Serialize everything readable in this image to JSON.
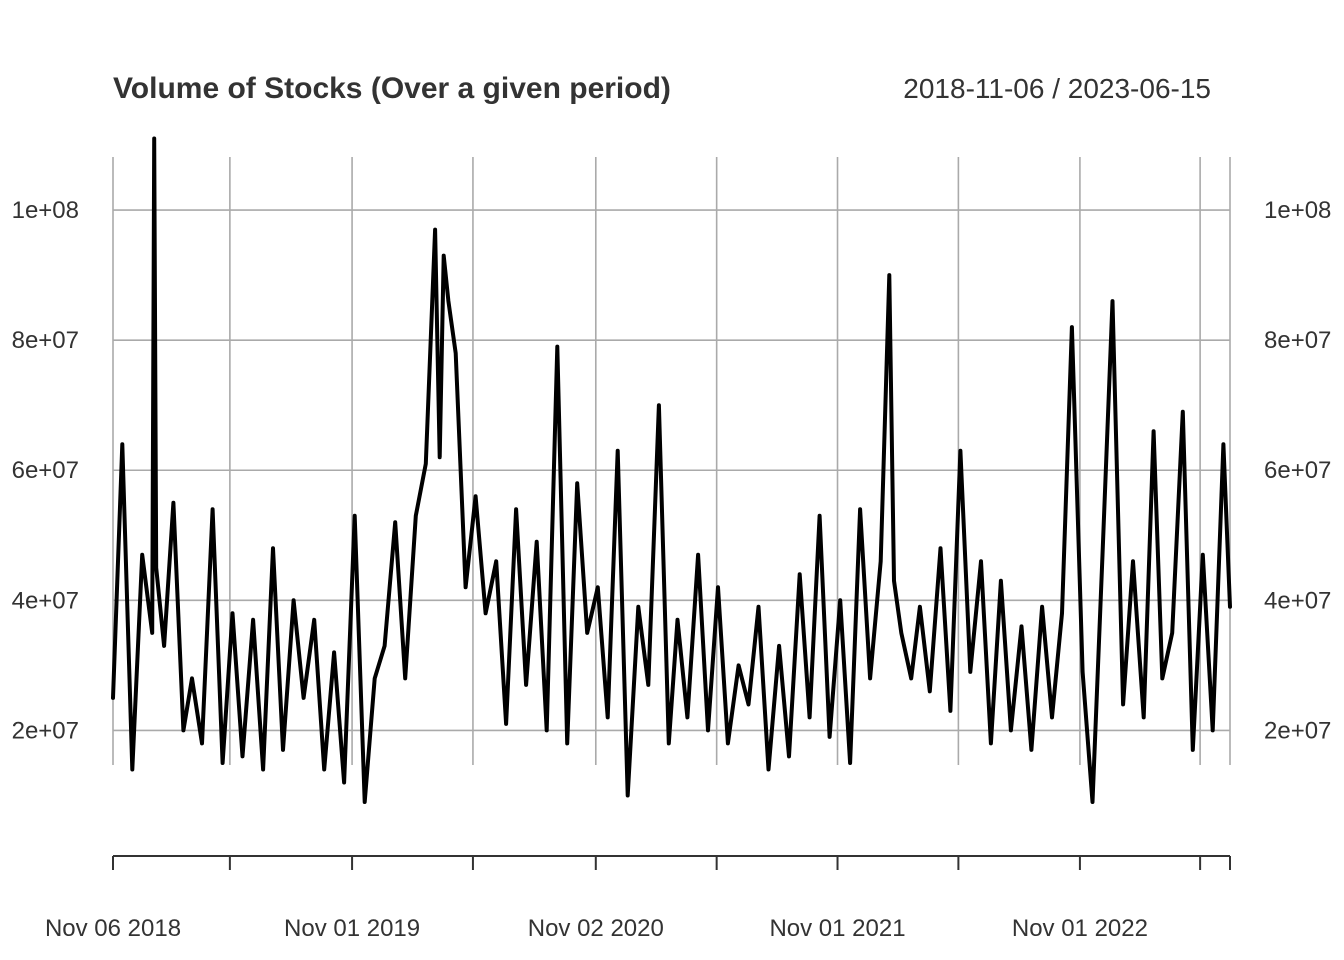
{
  "chart_data": {
    "type": "line",
    "title": "Volume of Stocks (Over a given period)",
    "date_range": "2018-11-06 / 2023-06-15",
    "x_range": [
      "2018-11-06",
      "2023-06-15"
    ],
    "ylim": [
      5000000,
      110000000
    ],
    "y_ticks": [
      20000000,
      40000000,
      60000000,
      80000000,
      100000000
    ],
    "y_tick_labels": [
      "2e+07",
      "4e+07",
      "6e+07",
      "8e+07",
      "1e+08"
    ],
    "x_ticks": [
      "2018-11-06",
      "2019-05-01",
      "2019-11-01",
      "2020-05-01",
      "2020-11-02",
      "2021-05-03",
      "2021-11-01",
      "2022-05-02",
      "2022-11-01",
      "2023-05-01",
      "2023-06-15"
    ],
    "x_tick_labels": [
      {
        "date": "2018-11-06",
        "label": "Nov 06 2018"
      },
      {
        "date": "2019-11-01",
        "label": "Nov 01 2019"
      },
      {
        "date": "2020-11-02",
        "label": "Nov 02 2020"
      },
      {
        "date": "2021-11-01",
        "label": "Nov 01 2021"
      },
      {
        "date": "2022-11-01",
        "label": "Nov 01 2022"
      }
    ],
    "grid": true,
    "series": [
      {
        "x": [
          "2018-11-06",
          "2018-11-20",
          "2018-12-05",
          "2018-12-20",
          "2019-01-04",
          "2019-01-07",
          "2019-01-10",
          "2019-01-22",
          "2019-02-05",
          "2019-02-20",
          "2019-03-05",
          "2019-03-20",
          "2019-04-05",
          "2019-04-20",
          "2019-05-05",
          "2019-05-20",
          "2019-06-05",
          "2019-06-20",
          "2019-07-05",
          "2019-07-20",
          "2019-08-05",
          "2019-08-20",
          "2019-09-05",
          "2019-09-20",
          "2019-10-05",
          "2019-10-20",
          "2019-11-05",
          "2019-11-20",
          "2019-12-05",
          "2019-12-20",
          "2020-01-05",
          "2020-01-20",
          "2020-02-05",
          "2020-02-20",
          "2020-03-05",
          "2020-03-12",
          "2020-03-18",
          "2020-03-25",
          "2020-04-05",
          "2020-04-20",
          "2020-05-05",
          "2020-05-20",
          "2020-06-05",
          "2020-06-20",
          "2020-07-05",
          "2020-07-20",
          "2020-08-05",
          "2020-08-20",
          "2020-09-05",
          "2020-09-20",
          "2020-10-05",
          "2020-10-20",
          "2020-11-05",
          "2020-11-20",
          "2020-12-05",
          "2020-12-20",
          "2021-01-05",
          "2021-01-20",
          "2021-02-05",
          "2021-02-20",
          "2021-03-05",
          "2021-03-20",
          "2021-04-05",
          "2021-04-20",
          "2021-05-05",
          "2021-05-20",
          "2021-06-05",
          "2021-06-20",
          "2021-07-05",
          "2021-07-20",
          "2021-08-05",
          "2021-08-20",
          "2021-09-05",
          "2021-09-20",
          "2021-10-05",
          "2021-10-20",
          "2021-11-05",
          "2021-11-20",
          "2021-12-05",
          "2021-12-20",
          "2022-01-05",
          "2022-01-18",
          "2022-01-25",
          "2022-02-05",
          "2022-02-20",
          "2022-03-05",
          "2022-03-20",
          "2022-04-05",
          "2022-04-20",
          "2022-05-05",
          "2022-05-20",
          "2022-06-05",
          "2022-06-20",
          "2022-07-05",
          "2022-07-20",
          "2022-08-05",
          "2022-08-20",
          "2022-09-05",
          "2022-09-20",
          "2022-10-05",
          "2022-10-20",
          "2022-11-05",
          "2022-11-20",
          "2022-12-05",
          "2022-12-20",
          "2023-01-05",
          "2023-01-20",
          "2023-02-05",
          "2023-02-20",
          "2023-03-05",
          "2023-03-20",
          "2023-04-05",
          "2023-04-20",
          "2023-05-05",
          "2023-05-20",
          "2023-06-05",
          "2023-06-15"
        ],
        "values": [
          25000000,
          64000000,
          14000000,
          47000000,
          35000000,
          111000000,
          45000000,
          33000000,
          55000000,
          20000000,
          28000000,
          18000000,
          54000000,
          15000000,
          38000000,
          16000000,
          37000000,
          14000000,
          48000000,
          17000000,
          40000000,
          25000000,
          37000000,
          14000000,
          32000000,
          12000000,
          53000000,
          9000000,
          28000000,
          33000000,
          52000000,
          28000000,
          53000000,
          61000000,
          97000000,
          62000000,
          93000000,
          86000000,
          78000000,
          42000000,
          56000000,
          38000000,
          46000000,
          21000000,
          54000000,
          27000000,
          49000000,
          20000000,
          79000000,
          18000000,
          58000000,
          35000000,
          42000000,
          22000000,
          63000000,
          10000000,
          39000000,
          27000000,
          70000000,
          18000000,
          37000000,
          22000000,
          47000000,
          20000000,
          42000000,
          18000000,
          30000000,
          24000000,
          39000000,
          14000000,
          33000000,
          16000000,
          44000000,
          22000000,
          53000000,
          19000000,
          40000000,
          15000000,
          54000000,
          28000000,
          46000000,
          90000000,
          43000000,
          35000000,
          28000000,
          39000000,
          26000000,
          48000000,
          23000000,
          63000000,
          29000000,
          46000000,
          18000000,
          43000000,
          20000000,
          36000000,
          17000000,
          39000000,
          22000000,
          38000000,
          82000000,
          29000000,
          9000000,
          47000000,
          86000000,
          24000000,
          46000000,
          22000000,
          66000000,
          28000000,
          35000000,
          69000000,
          17000000,
          47000000,
          20000000,
          64000000,
          39000000
        ]
      }
    ]
  }
}
